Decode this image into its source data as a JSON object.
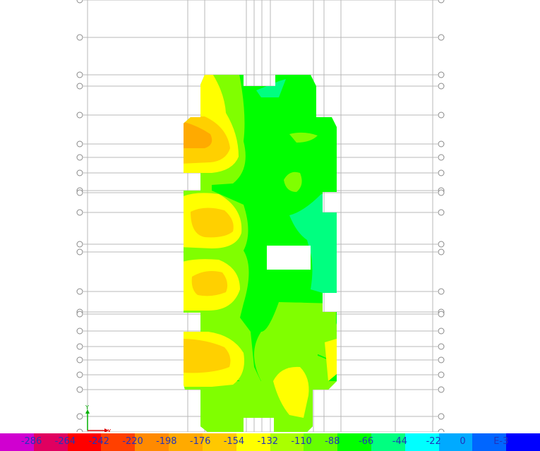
{
  "legend": {
    "colors": [
      "#d000d0",
      "#e00060",
      "#ff0000",
      "#ff4000",
      "#ff8a00",
      "#ffaa00",
      "#ffc800",
      "#ffff00",
      "#aaff00",
      "#66ff00",
      "#00ff00",
      "#00ff80",
      "#00ffff",
      "#00aaff",
      "#0066ff",
      "#0000ff"
    ],
    "labels": [
      "-286",
      "-264",
      "-242",
      "-220",
      "-198",
      "-176",
      "-154",
      "-132",
      "-110",
      "-88",
      "-66",
      "-44",
      "-22",
      "0",
      "E-3"
    ]
  },
  "axis": {
    "x_label": "X",
    "y_label": "Y"
  },
  "palette": {
    "gridline": "#b8b8b8",
    "bubble": "#888888",
    "field_base": "#00ff00",
    "light_green": "#80ff00",
    "yellow": "#ffff00",
    "gold": "#ffd000",
    "orange": "#ffaa00",
    "sea_green": "#00ff80",
    "axis_green": "#00b000",
    "axis_red": "#e00000"
  }
}
